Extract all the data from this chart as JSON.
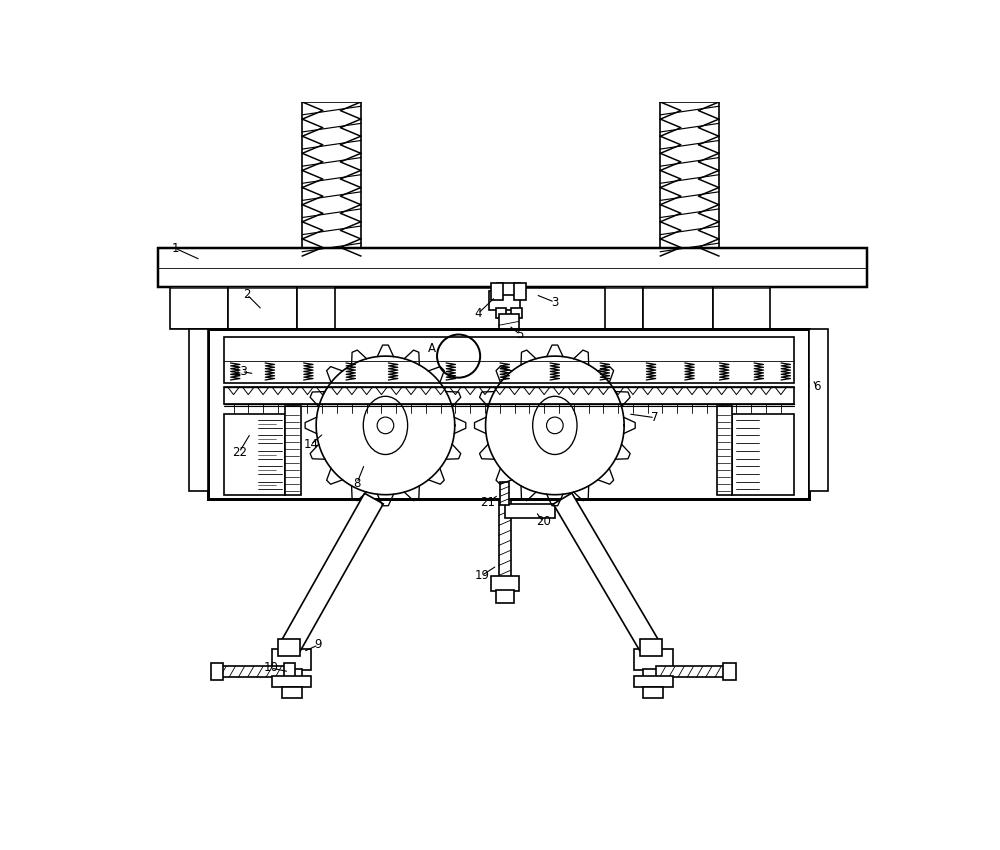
{
  "bg_color": "#ffffff",
  "lc": "#000000",
  "lw": 1.2,
  "fig_w": 10.0,
  "fig_h": 8.5,
  "dpi": 100
}
